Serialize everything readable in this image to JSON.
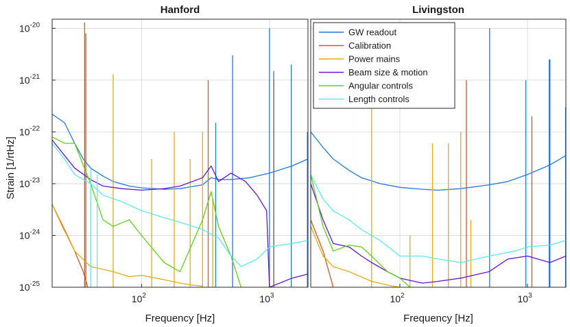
{
  "figure": {
    "ylabel": "Strain [1/rtHz]"
  },
  "chart_data": [
    {
      "type": "line",
      "title": "Hanford",
      "xlabel": "Frequency [Hz]",
      "ylabel": "Strain [1/rtHz]",
      "xscale": "log",
      "yscale": "log",
      "xlim": [
        20,
        2000
      ],
      "ylim": [
        1e-25,
        1.5e-20
      ],
      "grid": true,
      "x_ticks": [
        {
          "base": "10",
          "exp": "2",
          "value": 100
        },
        {
          "base": "10",
          "exp": "3",
          "value": 1000
        }
      ],
      "y_ticks": [
        {
          "base": "10",
          "exp": "-25",
          "value": 1e-25
        },
        {
          "base": "10",
          "exp": "-24",
          "value": 1e-24
        },
        {
          "base": "10",
          "exp": "-23",
          "value": 1e-23
        },
        {
          "base": "10",
          "exp": "-22",
          "value": 1e-22
        },
        {
          "base": "10",
          "exp": "-21",
          "value": 1e-21
        },
        {
          "base": "10",
          "exp": "-20",
          "value": 1e-20
        }
      ],
      "series": [
        {
          "name": "GW readout",
          "color": "#1f77e0",
          "points": [
            [
              20,
              2.2e-22
            ],
            [
              25,
              1.5e-22
            ],
            [
              30,
              6e-23
            ],
            [
              35,
              3e-23
            ],
            [
              40,
              2e-23
            ],
            [
              50,
              1.4e-23
            ],
            [
              60,
              1.1e-23
            ],
            [
              80,
              9e-24
            ],
            [
              100,
              8.3e-24
            ],
            [
              150,
              7.8e-24
            ],
            [
              200,
              8e-24
            ],
            [
              300,
              9.5e-24
            ],
            [
              350,
              1.3e-23
            ],
            [
              400,
              1.2e-23
            ],
            [
              500,
              1.2e-23
            ],
            [
              700,
              1.3e-23
            ],
            [
              1000,
              1.6e-23
            ],
            [
              1500,
              2.2e-23
            ],
            [
              2000,
              3e-23
            ]
          ],
          "lines": [
            [
              515,
              3e-21
            ],
            [
              1000,
              1e-20
            ],
            [
              1080,
              1.5e-21
            ],
            [
              1480,
              2e-21
            ],
            [
              1980,
              1e-22
            ],
            [
              380,
              1.5e-22
            ]
          ]
        },
        {
          "name": "Calibration",
          "color": "#d95319",
          "points": [
            [
              20,
              4e-24
            ],
            [
              25,
              1.3e-24
            ],
            [
              30,
              5e-25
            ],
            [
              35,
              2e-25
            ],
            [
              38,
              1e-25
            ]
          ],
          "lines": [
            [
              35.9,
              1.3e-20
            ],
            [
              36.7,
              8e-21
            ],
            [
              331.9,
              1e-21
            ],
            [
              1083.1,
              1e-21
            ]
          ]
        },
        {
          "name": "Power mains",
          "color": "#e6a813",
          "points": [
            [
              20,
              4e-24
            ],
            [
              24,
              1.5e-24
            ],
            [
              30,
              5e-25
            ],
            [
              40,
              2.5e-25
            ],
            [
              60,
              2e-25
            ],
            [
              80,
              1.6e-25
            ],
            [
              100,
              1.7e-25
            ],
            [
              150,
              1.4e-25
            ],
            [
              200,
              1.2e-25
            ],
            [
              250,
              1.1e-25
            ],
            [
              300,
              1.05e-25
            ]
          ],
          "lines": [
            [
              60,
              1.3e-21
            ],
            [
              120,
              3e-23
            ],
            [
              180,
              1e-22
            ],
            [
              240,
              3e-23
            ],
            [
              300,
              1e-22
            ],
            [
              360,
              5e-24
            ]
          ]
        },
        {
          "name": "Beam size & motion",
          "color": "#6412d9",
          "points": [
            [
              20,
              7e-23
            ],
            [
              25,
              3.5e-23
            ],
            [
              30,
              2e-23
            ],
            [
              40,
              1.2e-23
            ],
            [
              50,
              9e-24
            ],
            [
              70,
              8e-24
            ],
            [
              100,
              7.5e-24
            ],
            [
              150,
              8e-24
            ],
            [
              200,
              9e-24
            ],
            [
              300,
              1.3e-23
            ],
            [
              350,
              2.2e-23
            ],
            [
              400,
              1.1e-23
            ],
            [
              500,
              1.6e-23
            ],
            [
              650,
              1.1e-23
            ],
            [
              800,
              6e-24
            ],
            [
              950,
              3e-24
            ],
            [
              1000,
              1e-25
            ],
            [
              1500,
              1.5e-25
            ],
            [
              2000,
              1.8e-25
            ]
          ],
          "lines": []
        },
        {
          "name": "Angular controls",
          "color": "#5fd10f",
          "points": [
            [
              20,
              8e-23
            ],
            [
              25,
              6e-23
            ],
            [
              30,
              6e-23
            ],
            [
              40,
              1e-23
            ],
            [
              50,
              2e-24
            ],
            [
              60,
              1.5e-24
            ],
            [
              80,
              2e-24
            ],
            [
              100,
              1e-24
            ],
            [
              150,
              3e-25
            ],
            [
              200,
              2e-25
            ],
            [
              300,
              2e-24
            ],
            [
              350,
              7e-24
            ],
            [
              400,
              1.5e-24
            ],
            [
              500,
              4e-25
            ],
            [
              600,
              1e-25
            ]
          ],
          "lines": []
        },
        {
          "name": "Length controls",
          "color": "#5ce8f2",
          "points": [
            [
              20,
              6e-23
            ],
            [
              25,
              3e-23
            ],
            [
              30,
              1.5e-23
            ],
            [
              40,
              1e-23
            ],
            [
              50,
              6e-24
            ],
            [
              70,
              4.5e-24
            ],
            [
              100,
              3e-24
            ],
            [
              150,
              2.2e-24
            ],
            [
              200,
              1.8e-24
            ],
            [
              300,
              1.3e-24
            ],
            [
              400,
              9e-25
            ],
            [
              500,
              4e-25
            ],
            [
              600,
              2.5e-25
            ],
            [
              800,
              3.5e-25
            ],
            [
              1000,
              6e-25
            ],
            [
              1500,
              7e-25
            ],
            [
              2000,
              8e-25
            ]
          ],
          "lines": [
            [
              40,
              2e-23
            ],
            [
              45,
              1.5e-23
            ]
          ]
        }
      ]
    },
    {
      "type": "line",
      "title": "Livingston",
      "xlabel": "Frequency [Hz]",
      "ylabel": "",
      "xscale": "log",
      "yscale": "log",
      "xlim": [
        20,
        2000
      ],
      "ylim": [
        1e-25,
        1.5e-20
      ],
      "grid": true,
      "legend": "top-left",
      "x_ticks": [
        {
          "base": "10",
          "exp": "2",
          "value": 100
        },
        {
          "base": "10",
          "exp": "3",
          "value": 1000
        }
      ],
      "y_ticks": [],
      "series": [
        {
          "name": "GW readout",
          "color": "#1f77e0",
          "points": [
            [
              20,
              1e-22
            ],
            [
              25,
              5e-23
            ],
            [
              30,
              3e-23
            ],
            [
              40,
              1.8e-23
            ],
            [
              50,
              1.3e-23
            ],
            [
              70,
              1e-23
            ],
            [
              100,
              8.5e-24
            ],
            [
              150,
              7.8e-24
            ],
            [
              200,
              7.5e-24
            ],
            [
              300,
              8e-24
            ],
            [
              500,
              9.5e-24
            ],
            [
              700,
              1.1e-23
            ],
            [
              1000,
              1.5e-23
            ],
            [
              1500,
              2.3e-23
            ],
            [
              2000,
              3.5e-23
            ]
          ],
          "lines": [
            [
              505,
              1e-20
            ],
            [
              970,
              1e-21
            ],
            [
              1480,
              2.5e-21
            ],
            [
              1500,
              2.5e-21
            ],
            [
              1990,
              3e-22
            ]
          ]
        },
        {
          "name": "Calibration",
          "color": "#d95319",
          "points": [
            [
              20,
              2e-24
            ],
            [
              25,
              5e-25
            ],
            [
              30,
              1e-25
            ]
          ],
          "lines": [
            [
              331.9,
              1e-21
            ],
            [
              1083.1,
              2e-22
            ]
          ]
        },
        {
          "name": "Power mains",
          "color": "#e6a813",
          "points": [
            [
              20,
              1.5e-24
            ],
            [
              25,
              4e-25
            ],
            [
              30,
              2.5e-25
            ],
            [
              40,
              2e-25
            ],
            [
              60,
              1.3e-25
            ],
            [
              80,
              1.1e-25
            ],
            [
              100,
              1e-25
            ]
          ],
          "lines": [
            [
              60,
              3e-22
            ],
            [
              120,
              1e-24
            ],
            [
              180,
              6e-23
            ],
            [
              240,
              6e-23
            ],
            [
              300,
              1e-22
            ],
            [
              360,
              2e-24
            ]
          ]
        },
        {
          "name": "Beam size & motion",
          "color": "#6412d9",
          "points": [
            [
              20,
              1e-23
            ],
            [
              25,
              2e-24
            ],
            [
              30,
              7e-25
            ],
            [
              40,
              6e-25
            ],
            [
              50,
              4e-25
            ],
            [
              60,
              3e-25
            ],
            [
              80,
              2e-25
            ],
            [
              100,
              1.5e-25
            ],
            [
              150,
              1.2e-25
            ],
            [
              200,
              1.3e-25
            ],
            [
              300,
              1.5e-25
            ],
            [
              500,
              2e-25
            ],
            [
              700,
              3.5e-25
            ],
            [
              1000,
              4e-25
            ],
            [
              1500,
              3e-25
            ],
            [
              2000,
              4e-25
            ]
          ],
          "lines": []
        },
        {
          "name": "Angular controls",
          "color": "#5fd10f",
          "points": [
            [
              20,
              1.5e-23
            ],
            [
              25,
              1.5e-24
            ],
            [
              30,
              5e-25
            ],
            [
              40,
              6.5e-25
            ],
            [
              50,
              6e-25
            ],
            [
              60,
              4e-25
            ],
            [
              80,
              2e-25
            ],
            [
              100,
              1.5e-25
            ],
            [
              120,
              1e-25
            ]
          ],
          "lines": []
        },
        {
          "name": "Length controls",
          "color": "#5ce8f2",
          "points": [
            [
              20,
              1.5e-23
            ],
            [
              25,
              5e-24
            ],
            [
              30,
              3e-24
            ],
            [
              40,
              2e-24
            ],
            [
              50,
              1.3e-24
            ],
            [
              70,
              8e-25
            ],
            [
              100,
              4e-25
            ],
            [
              150,
              4e-25
            ],
            [
              200,
              3.5e-25
            ],
            [
              300,
              3e-25
            ],
            [
              500,
              4e-25
            ],
            [
              800,
              5e-25
            ],
            [
              1000,
              6e-25
            ],
            [
              1500,
              6.5e-25
            ],
            [
              2000,
              8e-25
            ]
          ],
          "lines": []
        }
      ]
    }
  ]
}
